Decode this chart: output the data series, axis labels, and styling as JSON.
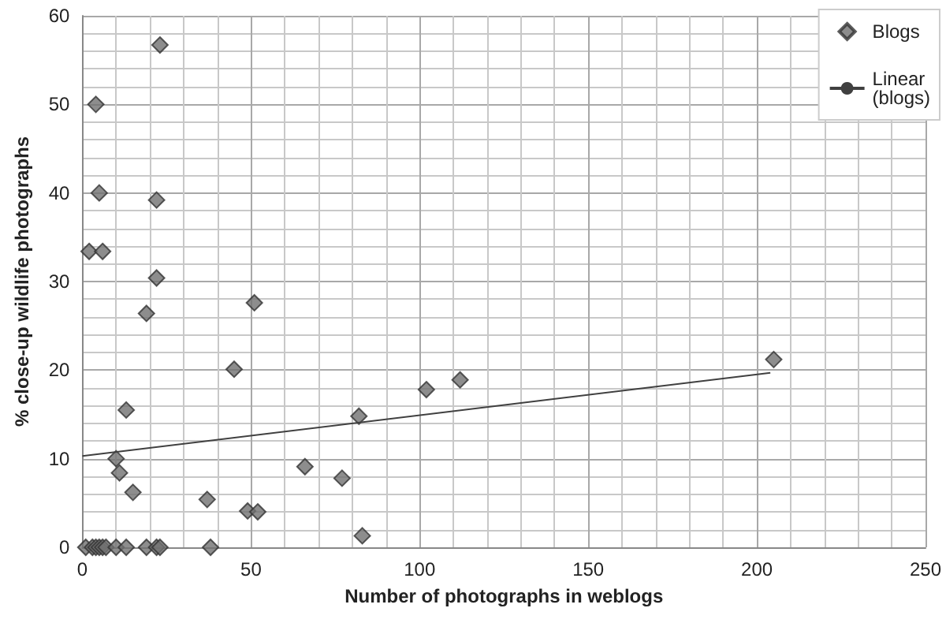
{
  "chart_data": {
    "type": "scatter",
    "xlabel": "Number of photographs in weblogs",
    "ylabel": "% close-up wildlife photographs",
    "xlim": [
      0,
      250
    ],
    "xticks": [
      0,
      50,
      100,
      150,
      200,
      250
    ],
    "ylim": [
      0,
      60
    ],
    "yticks": [
      0,
      10,
      20,
      30,
      40,
      50,
      60
    ],
    "grid": true,
    "legend": "top right",
    "series": [
      {
        "name": "Blogs",
        "marker": "diamond",
        "color": "#707070",
        "x": [
          23,
          4,
          5,
          22,
          2,
          6,
          22,
          19,
          51,
          45,
          13,
          10,
          11,
          15,
          37,
          49,
          52,
          66,
          77,
          82,
          83,
          102,
          112,
          205,
          1,
          3,
          4,
          5,
          6,
          7,
          10,
          13,
          19,
          22,
          23,
          38
        ],
        "values": [
          56.7,
          50,
          40,
          39.2,
          33.4,
          33.4,
          30.4,
          26.4,
          27.6,
          20.1,
          15.5,
          10,
          8.4,
          6.2,
          5.4,
          4.1,
          4,
          9.1,
          7.8,
          14.8,
          1.3,
          17.8,
          18.9,
          21.2,
          0,
          0,
          0,
          0,
          0,
          0,
          0,
          0,
          0,
          0,
          0,
          0
        ]
      },
      {
        "name": "Linear (blogs)",
        "type": "line",
        "marker": "none",
        "color": "#404040",
        "x": [
          0,
          204
        ],
        "values": [
          10.3,
          19.7
        ]
      }
    ]
  }
}
